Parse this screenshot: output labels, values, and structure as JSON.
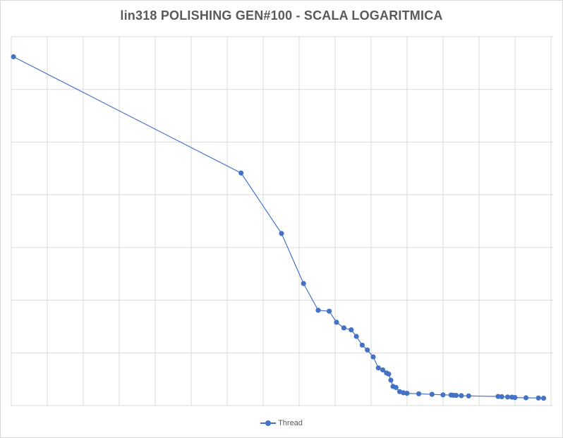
{
  "chart_data": {
    "type": "line",
    "title": "lin318 POLISHING GEN#100 - SCALA LOGARITMICA",
    "xlabel": "",
    "ylabel": "",
    "y_scale": "log",
    "grid": true,
    "legend": "bottom",
    "series": [
      {
        "name": "Thread",
        "color": "#4472c4",
        "x": [
          1,
          32,
          37.5,
          40.5,
          42.5,
          44,
          45,
          46,
          47,
          47.7,
          48.5,
          49.2,
          50,
          50.7,
          51.3,
          51.8,
          52.1,
          52.4,
          52.7,
          53.1,
          53.6,
          54.1,
          54.6,
          56.2,
          58,
          59.5,
          60.6,
          60.9,
          61.3,
          62,
          63,
          67,
          67.5,
          68.3,
          68.9,
          69.3,
          70.8,
          72.5,
          73.2
        ],
        "y": [
          97,
          79,
          71,
          65,
          62,
          61.9,
          60.7,
          60.1,
          59.9,
          59.2,
          58.3,
          57.8,
          57.1,
          56,
          55.8,
          55.5,
          55.4,
          54.8,
          54.2,
          54.1,
          53.7,
          53.6,
          53.55,
          53.5,
          53.45,
          53.4,
          53.38,
          53.36,
          53.35,
          53.32,
          53.3,
          53.25,
          53.22,
          53.2,
          53.18,
          53.15,
          53.12,
          53.1,
          53.08
        ]
      }
    ]
  },
  "legend_label": "Thread"
}
